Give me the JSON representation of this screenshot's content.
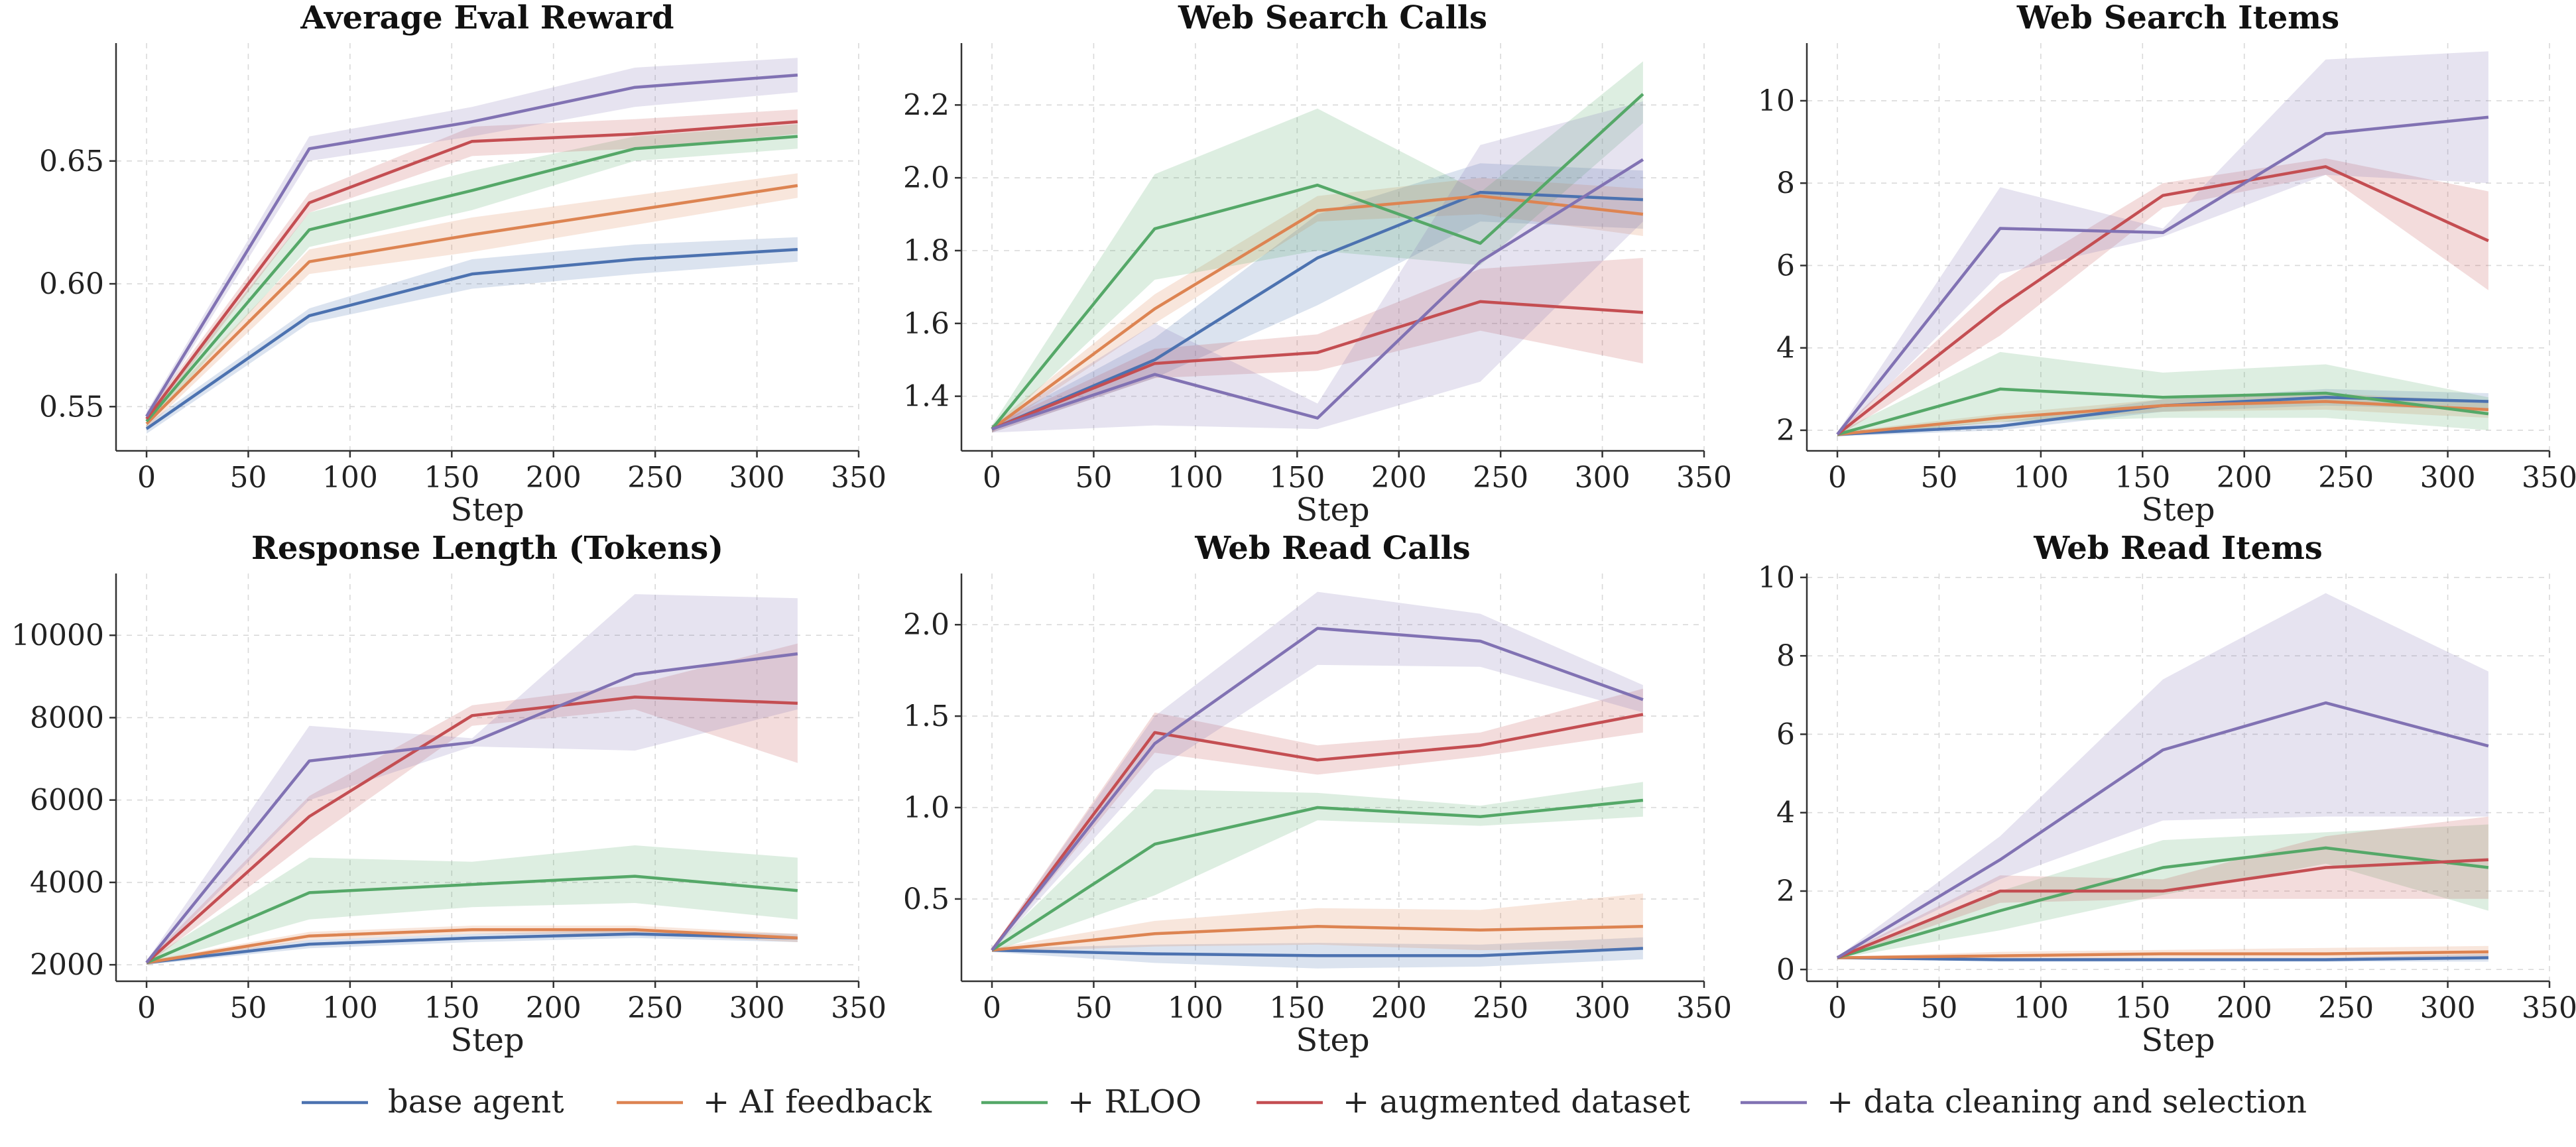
{
  "chart_data": {
    "type": "line",
    "x": [
      0,
      80,
      160,
      240,
      320
    ],
    "xlabel": "Step",
    "xlim": [
      -15,
      350
    ],
    "xticks": [
      0,
      50,
      100,
      150,
      200,
      250,
      300,
      350
    ],
    "legend": {
      "placement": "bottom-center",
      "entries": [
        "base agent",
        "+ AI feedback",
        "+ RLOO",
        "+ augmented dataset",
        "+ data cleaning and selection"
      ]
    },
    "colors": {
      "base agent": "#4c72b0",
      "+ AI feedback": "#dd8452",
      "+ RLOO": "#55a868",
      "+ augmented dataset": "#c44e52",
      "+ data cleaning and selection": "#8172b3"
    },
    "panels": [
      {
        "title": "Average Eval Reward",
        "ylim": [
          0.532,
          0.698
        ],
        "yticks": [
          0.55,
          0.6,
          0.65
        ],
        "ytick_labels": [
          "0.55",
          "0.60",
          "0.65"
        ],
        "series": [
          {
            "name": "base agent",
            "values": [
              0.541,
              0.587,
              0.604,
              0.61,
              0.614
            ],
            "lower": [
              0.539,
              0.584,
              0.598,
              0.604,
              0.609
            ],
            "upper": [
              0.543,
              0.59,
              0.61,
              0.616,
              0.619
            ]
          },
          {
            "name": "+ AI feedback",
            "values": [
              0.543,
              0.609,
              0.62,
              0.63,
              0.64
            ],
            "lower": [
              0.541,
              0.604,
              0.613,
              0.624,
              0.635
            ],
            "upper": [
              0.545,
              0.614,
              0.627,
              0.636,
              0.645
            ]
          },
          {
            "name": "+ RLOO",
            "values": [
              0.544,
              0.622,
              0.638,
              0.655,
              0.66
            ],
            "lower": [
              0.542,
              0.615,
              0.63,
              0.65,
              0.655
            ],
            "upper": [
              0.546,
              0.629,
              0.646,
              0.66,
              0.665
            ]
          },
          {
            "name": "+ augmented dataset",
            "values": [
              0.545,
              0.633,
              0.658,
              0.661,
              0.666
            ],
            "lower": [
              0.543,
              0.629,
              0.652,
              0.655,
              0.661
            ],
            "upper": [
              0.547,
              0.637,
              0.664,
              0.667,
              0.671
            ]
          },
          {
            "name": "+ data cleaning and selection",
            "values": [
              0.546,
              0.655,
              0.666,
              0.68,
              0.685
            ],
            "lower": [
              0.544,
              0.65,
              0.66,
              0.672,
              0.678
            ],
            "upper": [
              0.548,
              0.66,
              0.672,
              0.688,
              0.692
            ]
          }
        ]
      },
      {
        "title": "Web Search Calls",
        "ylim": [
          1.25,
          2.37
        ],
        "yticks": [
          1.4,
          1.6,
          1.8,
          2.0,
          2.2
        ],
        "ytick_labels": [
          "1.4",
          "1.6",
          "1.8",
          "2.0",
          "2.2"
        ],
        "series": [
          {
            "name": "base agent",
            "values": [
              1.31,
              1.5,
              1.78,
              1.96,
              1.94
            ],
            "lower": [
              1.3,
              1.45,
              1.65,
              1.88,
              1.86
            ],
            "upper": [
              1.32,
              1.56,
              1.9,
              2.04,
              2.02
            ]
          },
          {
            "name": "+ AI feedback",
            "values": [
              1.31,
              1.64,
              1.91,
              1.95,
              1.9
            ],
            "lower": [
              1.3,
              1.6,
              1.88,
              1.9,
              1.84
            ],
            "upper": [
              1.32,
              1.68,
              1.95,
              2.0,
              1.97
            ]
          },
          {
            "name": "+ RLOO",
            "values": [
              1.31,
              1.86,
              1.98,
              1.82,
              2.23
            ],
            "lower": [
              1.3,
              1.72,
              1.8,
              1.76,
              2.15
            ],
            "upper": [
              1.32,
              2.01,
              2.19,
              1.96,
              2.32
            ]
          },
          {
            "name": "+ augmented dataset",
            "values": [
              1.31,
              1.49,
              1.52,
              1.66,
              1.63
            ],
            "lower": [
              1.3,
              1.45,
              1.47,
              1.58,
              1.49
            ],
            "upper": [
              1.32,
              1.53,
              1.57,
              1.75,
              1.78
            ]
          },
          {
            "name": "+ data cleaning and selection",
            "values": [
              1.31,
              1.46,
              1.34,
              1.77,
              2.05
            ],
            "lower": [
              1.3,
              1.32,
              1.31,
              1.44,
              1.88
            ],
            "upper": [
              1.32,
              1.6,
              1.38,
              2.09,
              2.21
            ]
          }
        ]
      },
      {
        "title": "Web Search Items",
        "ylim": [
          1.5,
          11.4
        ],
        "yticks": [
          2,
          4,
          6,
          8,
          10
        ],
        "ytick_labels": [
          "2",
          "4",
          "6",
          "8",
          "10"
        ],
        "series": [
          {
            "name": "base agent",
            "values": [
              1.9,
              2.1,
              2.6,
              2.8,
              2.7
            ],
            "lower": [
              1.85,
              2.0,
              2.45,
              2.6,
              2.5
            ],
            "upper": [
              1.95,
              2.2,
              2.75,
              3.0,
              2.9
            ]
          },
          {
            "name": "+ AI feedback",
            "values": [
              1.9,
              2.3,
              2.6,
              2.7,
              2.5
            ],
            "lower": [
              1.85,
              2.2,
              2.45,
              2.5,
              2.3
            ],
            "upper": [
              1.95,
              2.4,
              2.75,
              2.9,
              2.7
            ]
          },
          {
            "name": "+ RLOO",
            "values": [
              1.9,
              3.0,
              2.8,
              2.9,
              2.4
            ],
            "lower": [
              1.85,
              2.2,
              2.3,
              2.3,
              2.0
            ],
            "upper": [
              1.95,
              3.9,
              3.4,
              3.6,
              2.8
            ]
          },
          {
            "name": "+ augmented dataset",
            "values": [
              1.9,
              5.0,
              7.7,
              8.4,
              6.6
            ],
            "lower": [
              1.85,
              4.3,
              7.4,
              8.2,
              5.4
            ],
            "upper": [
              1.95,
              5.6,
              8.0,
              8.6,
              7.8
            ]
          },
          {
            "name": "+ data cleaning and selection",
            "values": [
              1.9,
              6.9,
              6.8,
              9.2,
              9.6
            ],
            "lower": [
              1.85,
              5.8,
              6.7,
              8.2,
              8.0
            ],
            "upper": [
              1.95,
              7.9,
              6.9,
              11.0,
              11.2
            ]
          }
        ]
      },
      {
        "title": "Response Length (Tokens)",
        "ylim": [
          1600,
          11500
        ],
        "yticks": [
          2000,
          4000,
          6000,
          8000,
          10000
        ],
        "ytick_labels": [
          "2000",
          "4000",
          "6000",
          "8000",
          "10000"
        ],
        "series": [
          {
            "name": "base agent",
            "values": [
              2050,
              2500,
              2650,
              2750,
              2650
            ],
            "lower": [
              2000,
              2400,
              2550,
              2650,
              2550
            ],
            "upper": [
              2100,
              2600,
              2750,
              2850,
              2750
            ]
          },
          {
            "name": "+ AI feedback",
            "values": [
              2050,
              2700,
              2850,
              2850,
              2650
            ],
            "lower": [
              2000,
              2600,
              2750,
              2750,
              2550
            ],
            "upper": [
              2100,
              2800,
              2950,
              2950,
              2750
            ]
          },
          {
            "name": "+ RLOO",
            "values": [
              2050,
              3750,
              3950,
              4150,
              3800
            ],
            "lower": [
              2000,
              3100,
              3400,
              3500,
              3100
            ],
            "upper": [
              2100,
              4600,
              4500,
              4900,
              4600
            ]
          },
          {
            "name": "+ augmented dataset",
            "values": [
              2050,
              5600,
              8050,
              8500,
              8350
            ],
            "lower": [
              2000,
              5000,
              7800,
              8200,
              6900
            ],
            "upper": [
              2100,
              6100,
              8300,
              8800,
              9800
            ]
          },
          {
            "name": "+ data cleaning and selection",
            "values": [
              2050,
              6950,
              7400,
              9050,
              9550
            ],
            "lower": [
              2000,
              6000,
              7300,
              7200,
              8200
            ],
            "upper": [
              2100,
              7800,
              7500,
              11000,
              10900
            ]
          }
        ]
      },
      {
        "title": "Web Read Calls",
        "ylim": [
          0.05,
          2.28
        ],
        "yticks": [
          0.5,
          1.0,
          1.5,
          2.0
        ],
        "ytick_labels": [
          "0.5",
          "1.0",
          "1.5",
          "2.0"
        ],
        "series": [
          {
            "name": "base agent",
            "values": [
              0.22,
              0.2,
              0.19,
              0.19,
              0.23
            ],
            "lower": [
              0.21,
              0.15,
              0.12,
              0.13,
              0.17
            ],
            "upper": [
              0.23,
              0.25,
              0.26,
              0.25,
              0.29
            ]
          },
          {
            "name": "+ AI feedback",
            "values": [
              0.22,
              0.31,
              0.35,
              0.33,
              0.35
            ],
            "lower": [
              0.21,
              0.24,
              0.25,
              0.22,
              0.23
            ],
            "upper": [
              0.23,
              0.38,
              0.45,
              0.44,
              0.53
            ]
          },
          {
            "name": "+ RLOO",
            "values": [
              0.22,
              0.8,
              1.0,
              0.95,
              1.04
            ],
            "lower": [
              0.21,
              0.52,
              0.93,
              0.9,
              0.95
            ],
            "upper": [
              0.23,
              1.1,
              1.08,
              1.01,
              1.14
            ]
          },
          {
            "name": "+ augmented dataset",
            "values": [
              0.22,
              1.41,
              1.26,
              1.34,
              1.51
            ],
            "lower": [
              0.21,
              1.3,
              1.18,
              1.28,
              1.41
            ],
            "upper": [
              0.23,
              1.52,
              1.34,
              1.41,
              1.65
            ]
          },
          {
            "name": "+ data cleaning and selection",
            "values": [
              0.22,
              1.35,
              1.98,
              1.91,
              1.59
            ],
            "lower": [
              0.21,
              1.2,
              1.78,
              1.77,
              1.52
            ],
            "upper": [
              0.23,
              1.5,
              2.18,
              2.06,
              1.67
            ]
          }
        ]
      },
      {
        "title": "Web Read Items",
        "ylim": [
          -0.3,
          10.1
        ],
        "yticks": [
          0,
          2,
          4,
          6,
          8,
          10
        ],
        "ytick_labels": [
          "0",
          "2",
          "4",
          "6",
          "8",
          "10"
        ],
        "series": [
          {
            "name": "base agent",
            "values": [
              0.3,
              0.25,
              0.25,
              0.25,
              0.3
            ],
            "lower": [
              0.28,
              0.2,
              0.2,
              0.2,
              0.2
            ],
            "upper": [
              0.32,
              0.3,
              0.3,
              0.3,
              0.4
            ]
          },
          {
            "name": "+ AI feedback",
            "values": [
              0.3,
              0.35,
              0.4,
              0.4,
              0.45
            ],
            "lower": [
              0.28,
              0.25,
              0.3,
              0.3,
              0.3
            ],
            "upper": [
              0.32,
              0.45,
              0.5,
              0.55,
              0.6
            ]
          },
          {
            "name": "+ RLOO",
            "values": [
              0.3,
              1.5,
              2.6,
              3.1,
              2.6
            ],
            "lower": [
              0.28,
              1.0,
              1.9,
              2.7,
              1.5
            ],
            "upper": [
              0.32,
              2.0,
              3.3,
              3.5,
              3.7
            ]
          },
          {
            "name": "+ augmented dataset",
            "values": [
              0.3,
              2.0,
              2.0,
              2.6,
              2.8
            ],
            "lower": [
              0.28,
              1.7,
              1.8,
              1.8,
              1.8
            ],
            "upper": [
              0.32,
              2.4,
              2.3,
              3.4,
              3.9
            ]
          },
          {
            "name": "+ data cleaning and selection",
            "values": [
              0.3,
              2.8,
              5.6,
              6.8,
              5.7
            ],
            "lower": [
              0.28,
              2.3,
              3.8,
              3.9,
              3.9
            ],
            "upper": [
              0.32,
              3.4,
              7.4,
              9.6,
              7.6
            ]
          }
        ]
      }
    ]
  }
}
